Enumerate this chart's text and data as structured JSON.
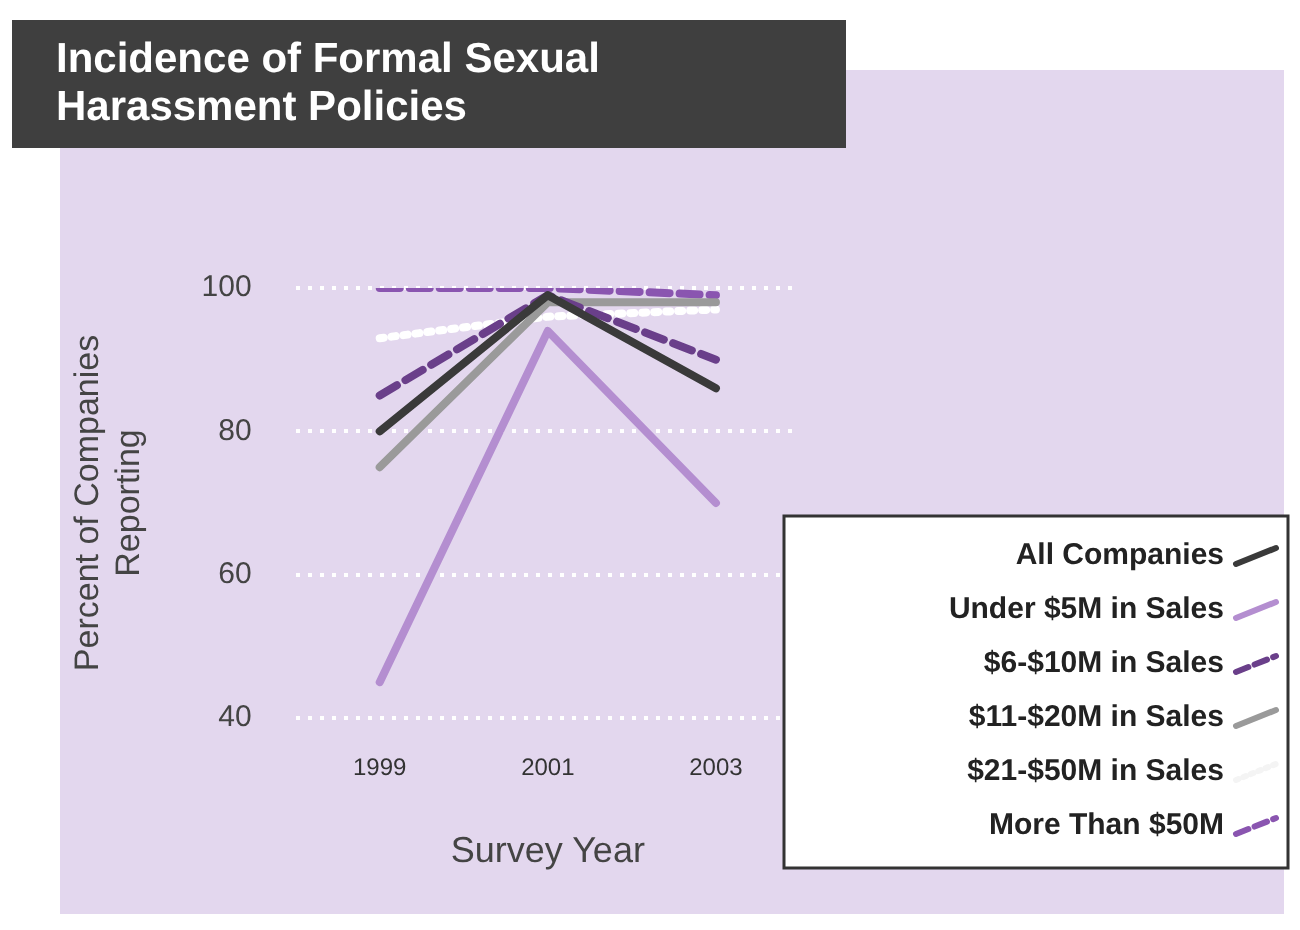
{
  "chart_data": {
    "type": "line",
    "title": "Incidence of Formal Sexual Harassment Policies",
    "xlabel": "Survey Year",
    "ylabel": "Percent of Companies Reporting",
    "categories": [
      "1999",
      "2001",
      "2003"
    ],
    "series": [
      {
        "name": "All Companies",
        "color": "#3a3a3a",
        "values": [
          80,
          99,
          86
        ],
        "line_style": "solid"
      },
      {
        "name": "Under $5M in Sales",
        "color": "#b48ed0",
        "values": [
          45,
          94,
          70
        ],
        "line_style": "solid"
      },
      {
        "name": "$6-$10M in Sales",
        "color": "#6a3f8a",
        "values": [
          85,
          99,
          90
        ],
        "line_style": "dashed"
      },
      {
        "name": "$11-$20M in Sales",
        "color": "#9a9a9a",
        "values": [
          75,
          98,
          98
        ],
        "line_style": "solid"
      },
      {
        "name": "$21-$50M in Sales",
        "color": "#ffffff",
        "values": [
          93,
          96,
          97
        ],
        "line_style": "dotted"
      },
      {
        "name": "More Than $50M",
        "color": "#8a55b0",
        "values": [
          100,
          100,
          99
        ],
        "line_style": "dashed"
      }
    ],
    "ylim": [
      40,
      100
    ],
    "yticks": [
      40,
      60,
      80,
      100
    ],
    "grid": "y",
    "legend": "bottom right",
    "marker": "none"
  }
}
